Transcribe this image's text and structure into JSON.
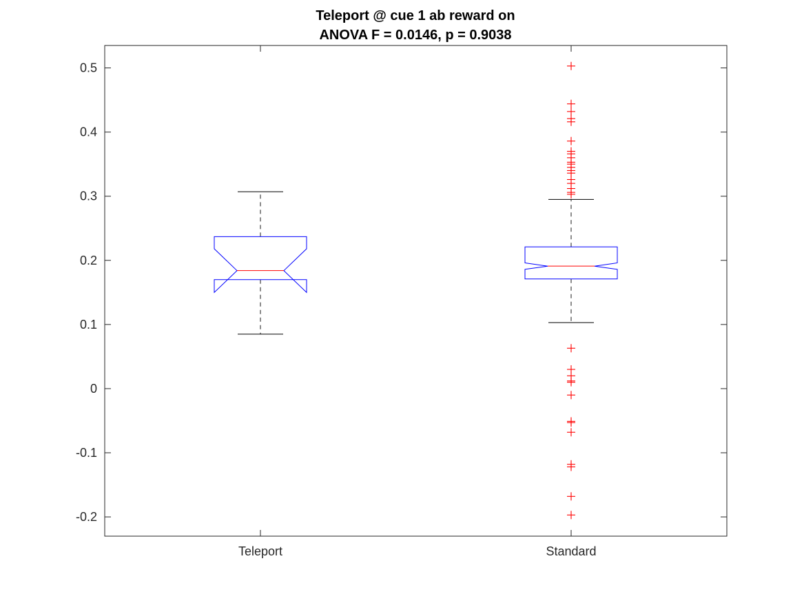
{
  "chart_data": {
    "type": "boxplot",
    "title": [
      "Teleport @ cue 1 ab reward on",
      "ANOVA F = 0.0146, p = 0.9038"
    ],
    "xlabel": "",
    "ylabel": "",
    "ylim": [
      -0.23,
      0.535
    ],
    "yticks": [
      -0.2,
      -0.1,
      0,
      0.1,
      0.2,
      0.3,
      0.4,
      0.5
    ],
    "ytick_labels": [
      "-0.2",
      "-0.1",
      "0",
      "0.1",
      "0.2",
      "0.3",
      "0.4",
      "0.5"
    ],
    "categories": [
      "Teleport",
      "Standard"
    ],
    "notched": true,
    "grid": false,
    "colors": {
      "box": "#0000ff",
      "median": "#ff0000",
      "outlier": "#ff0000",
      "whisker": "#4d4d4d",
      "cap": "#000000"
    },
    "groups": [
      {
        "name": "Teleport",
        "min": 0.085,
        "q1": 0.17,
        "median": 0.184,
        "q3": 0.237,
        "max": 0.307,
        "notch_low": 0.15,
        "notch_high": 0.218,
        "outliers": []
      },
      {
        "name": "Standard",
        "min": 0.103,
        "q1": 0.171,
        "median": 0.191,
        "q3": 0.221,
        "max": 0.295,
        "notch_low": 0.186,
        "notch_high": 0.196,
        "outliers": [
          0.503,
          0.444,
          0.432,
          0.421,
          0.416,
          0.386,
          0.37,
          0.366,
          0.36,
          0.353,
          0.35,
          0.345,
          0.34,
          0.336,
          0.326,
          0.32,
          0.312,
          0.306,
          0.303,
          0.063,
          0.03,
          0.02,
          0.012,
          0.01,
          -0.01,
          -0.051,
          -0.053,
          -0.068,
          -0.118,
          -0.122,
          -0.168,
          -0.197
        ]
      }
    ]
  }
}
